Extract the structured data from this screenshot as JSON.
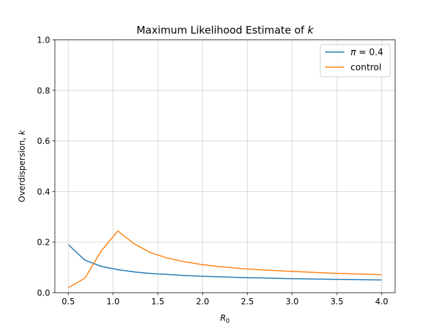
{
  "chart_data": {
    "type": "line",
    "title_prefix": "Maximum Likelihood Estimate of ",
    "title_var": "k",
    "xlabel_base": "R",
    "xlabel_sub": "0",
    "ylabel_prefix": "Overdispersion, ",
    "ylabel_var": "k",
    "xlim": [
      0.35,
      4.15
    ],
    "ylim": [
      0,
      1
    ],
    "xticks": [
      0.5,
      1.0,
      1.5,
      2.0,
      2.5,
      3.0,
      3.5,
      4.0
    ],
    "xtick_labels": [
      "0.5",
      "1.0",
      "1.5",
      "2.0",
      "2.5",
      "3.0",
      "3.5",
      "4.0"
    ],
    "yticks": [
      0,
      0.2,
      0.4,
      0.6,
      0.8,
      1.0
    ],
    "ytick_labels": [
      "0.0",
      "0.2",
      "0.4",
      "0.6",
      "0.8",
      "1.0"
    ],
    "grid": true,
    "legend_position": "top-right",
    "x": [
      0.5,
      0.684,
      0.868,
      1.053,
      1.237,
      1.421,
      1.605,
      1.789,
      1.974,
      2.158,
      2.342,
      2.526,
      2.711,
      2.895,
      3.079,
      3.263,
      3.447,
      3.632,
      3.816,
      4.0
    ],
    "series": [
      {
        "name_var": "π",
        "name_rest": " = 0.4",
        "color": "#1f77b4",
        "values": [
          0.19,
          0.129,
          0.104,
          0.091,
          0.082,
          0.076,
          0.072,
          0.068,
          0.065,
          0.063,
          0.061,
          0.059,
          0.058,
          0.056,
          0.055,
          0.054,
          0.053,
          0.052,
          0.051,
          0.05
        ]
      },
      {
        "name": "control",
        "color": "#ff7f0e",
        "values": [
          0.02,
          0.057,
          0.165,
          0.244,
          0.193,
          0.158,
          0.137,
          0.123,
          0.112,
          0.104,
          0.098,
          0.093,
          0.089,
          0.086,
          0.083,
          0.08,
          0.077,
          0.075,
          0.073,
          0.071
        ]
      }
    ]
  }
}
